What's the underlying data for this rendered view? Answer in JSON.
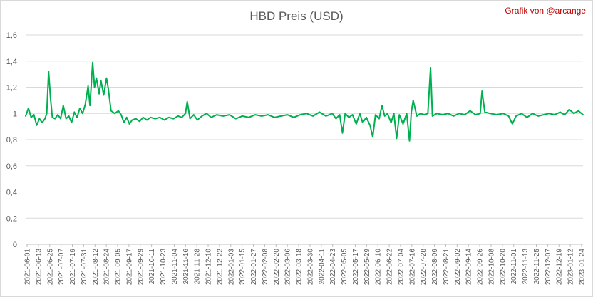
{
  "chart_data": {
    "type": "line",
    "title": "HBD Preis (USD)",
    "credit": "Grafik von @arcange",
    "xlabel": "",
    "ylabel": "",
    "ylim": [
      0,
      1.6
    ],
    "grid": true,
    "legend": "none",
    "y_ticks": [
      "0",
      "0,2",
      "0,4",
      "0,6",
      "0,8",
      "1",
      "1,2",
      "1,4",
      "1,6"
    ],
    "x_tick_labels": [
      "2021-06-01",
      "2021-06-13",
      "2021-06-25",
      "2021-07-07",
      "2021-07-19",
      "2021-07-31",
      "2021-08-12",
      "2021-08-24",
      "2021-09-05",
      "2021-09-17",
      "2021-09-29",
      "2021-10-11",
      "2021-10-23",
      "2021-11-04",
      "2021-11-16",
      "2021-11-28",
      "2021-12-10",
      "2021-12-22",
      "2022-01-03",
      "2022-01-15",
      "2022-01-27",
      "2022-02-08",
      "2022-02-20",
      "2022-03-06",
      "2022-03-18",
      "2022-03-30",
      "2022-04-11",
      "2022-04-23",
      "2022-05-05",
      "2022-05-17",
      "2022-05-29",
      "2022-06-10",
      "2022-06-22",
      "2022-07-04",
      "2022-07-16",
      "2022-07-28",
      "2022-08-09",
      "2022-08-21",
      "2022-09-02",
      "2022-09-14",
      "2022-09-26",
      "2022-10-08",
      "2022-10-20",
      "2022-11-01",
      "2022-11-13",
      "2022-11-25",
      "2022-12-07",
      "2022-12-19",
      "2023-01-12",
      "2023-01-24"
    ],
    "color": "#00b050",
    "series": [
      {
        "points": [
          [
            "2021-06-01",
            0.98
          ],
          [
            "2021-06-04",
            1.04
          ],
          [
            "2021-06-07",
            0.97
          ],
          [
            "2021-06-10",
            0.99
          ],
          [
            "2021-06-13",
            0.91
          ],
          [
            "2021-06-16",
            0.96
          ],
          [
            "2021-06-19",
            0.93
          ],
          [
            "2021-06-22",
            0.96
          ],
          [
            "2021-06-24",
            1.0
          ],
          [
            "2021-06-26",
            1.32
          ],
          [
            "2021-06-28",
            1.12
          ],
          [
            "2021-06-30",
            0.97
          ],
          [
            "2021-07-03",
            0.96
          ],
          [
            "2021-07-06",
            0.99
          ],
          [
            "2021-07-09",
            0.96
          ],
          [
            "2021-07-12",
            1.06
          ],
          [
            "2021-07-15",
            0.96
          ],
          [
            "2021-07-18",
            0.98
          ],
          [
            "2021-07-21",
            0.93
          ],
          [
            "2021-07-24",
            1.01
          ],
          [
            "2021-07-27",
            0.97
          ],
          [
            "2021-07-30",
            1.04
          ],
          [
            "2021-08-02",
            1.0
          ],
          [
            "2021-08-05",
            1.07
          ],
          [
            "2021-08-08",
            1.21
          ],
          [
            "2021-08-10",
            1.06
          ],
          [
            "2021-08-13",
            1.39
          ],
          [
            "2021-08-15",
            1.2
          ],
          [
            "2021-08-17",
            1.27
          ],
          [
            "2021-08-20",
            1.15
          ],
          [
            "2021-08-22",
            1.25
          ],
          [
            "2021-08-25",
            1.14
          ],
          [
            "2021-08-28",
            1.27
          ],
          [
            "2021-08-30",
            1.19
          ],
          [
            "2021-09-02",
            1.02
          ],
          [
            "2021-09-06",
            1.0
          ],
          [
            "2021-09-10",
            1.02
          ],
          [
            "2021-09-13",
            0.99
          ],
          [
            "2021-09-16",
            0.93
          ],
          [
            "2021-09-19",
            0.97
          ],
          [
            "2021-09-22",
            0.92
          ],
          [
            "2021-09-25",
            0.95
          ],
          [
            "2021-09-29",
            0.96
          ],
          [
            "2021-10-03",
            0.94
          ],
          [
            "2021-10-07",
            0.97
          ],
          [
            "2021-10-11",
            0.95
          ],
          [
            "2021-10-15",
            0.97
          ],
          [
            "2021-10-20",
            0.96
          ],
          [
            "2021-10-25",
            0.97
          ],
          [
            "2021-10-30",
            0.95
          ],
          [
            "2021-11-04",
            0.97
          ],
          [
            "2021-11-09",
            0.96
          ],
          [
            "2021-11-14",
            0.98
          ],
          [
            "2021-11-18",
            0.97
          ],
          [
            "2021-11-22",
            1.0
          ],
          [
            "2021-11-24",
            1.09
          ],
          [
            "2021-11-27",
            0.96
          ],
          [
            "2021-12-01",
            0.99
          ],
          [
            "2021-12-05",
            0.95
          ],
          [
            "2021-12-10",
            0.98
          ],
          [
            "2021-12-15",
            1.0
          ],
          [
            "2021-12-20",
            0.97
          ],
          [
            "2021-12-26",
            0.99
          ],
          [
            "2022-01-02",
            0.98
          ],
          [
            "2022-01-09",
            0.99
          ],
          [
            "2022-01-16",
            0.96
          ],
          [
            "2022-01-23",
            0.98
          ],
          [
            "2022-01-30",
            0.97
          ],
          [
            "2022-02-06",
            0.99
          ],
          [
            "2022-02-13",
            0.98
          ],
          [
            "2022-02-20",
            0.99
          ],
          [
            "2022-02-27",
            0.97
          ],
          [
            "2022-03-06",
            0.98
          ],
          [
            "2022-03-13",
            0.99
          ],
          [
            "2022-03-20",
            0.97
          ],
          [
            "2022-03-27",
            0.99
          ],
          [
            "2022-04-03",
            1.0
          ],
          [
            "2022-04-10",
            0.98
          ],
          [
            "2022-04-17",
            1.01
          ],
          [
            "2022-04-24",
            0.98
          ],
          [
            "2022-05-01",
            1.0
          ],
          [
            "2022-05-05",
            0.96
          ],
          [
            "2022-05-09",
            0.99
          ],
          [
            "2022-05-12",
            0.85
          ],
          [
            "2022-05-15",
            1.0
          ],
          [
            "2022-05-19",
            0.97
          ],
          [
            "2022-05-23",
            0.99
          ],
          [
            "2022-05-27",
            0.92
          ],
          [
            "2022-05-31",
            1.0
          ],
          [
            "2022-06-03",
            0.93
          ],
          [
            "2022-06-07",
            0.97
          ],
          [
            "2022-06-11",
            0.91
          ],
          [
            "2022-06-14",
            0.82
          ],
          [
            "2022-06-17",
            0.99
          ],
          [
            "2022-06-21",
            0.96
          ],
          [
            "2022-06-24",
            1.06
          ],
          [
            "2022-06-27",
            0.98
          ],
          [
            "2022-06-30",
            1.0
          ],
          [
            "2022-07-04",
            0.93
          ],
          [
            "2022-07-07",
            1.0
          ],
          [
            "2022-07-10",
            0.81
          ],
          [
            "2022-07-13",
            0.99
          ],
          [
            "2022-07-17",
            0.92
          ],
          [
            "2022-07-21",
            1.0
          ],
          [
            "2022-07-24",
            0.79
          ],
          [
            "2022-07-26",
            1.01
          ],
          [
            "2022-07-28",
            1.1
          ],
          [
            "2022-08-01",
            0.98
          ],
          [
            "2022-08-05",
            1.0
          ],
          [
            "2022-08-09",
            0.99
          ],
          [
            "2022-08-13",
            1.0
          ],
          [
            "2022-08-16",
            1.35
          ],
          [
            "2022-08-18",
            0.98
          ],
          [
            "2022-08-23",
            1.0
          ],
          [
            "2022-08-29",
            0.99
          ],
          [
            "2022-09-04",
            1.0
          ],
          [
            "2022-09-10",
            0.98
          ],
          [
            "2022-09-16",
            1.0
          ],
          [
            "2022-09-22",
            0.99
          ],
          [
            "2022-09-28",
            1.02
          ],
          [
            "2022-10-04",
            0.99
          ],
          [
            "2022-10-09",
            1.0
          ],
          [
            "2022-10-11",
            1.17
          ],
          [
            "2022-10-14",
            1.01
          ],
          [
            "2022-10-20",
            1.0
          ],
          [
            "2022-10-27",
            0.99
          ],
          [
            "2022-11-03",
            1.0
          ],
          [
            "2022-11-09",
            0.98
          ],
          [
            "2022-11-13",
            0.92
          ],
          [
            "2022-11-17",
            0.98
          ],
          [
            "2022-11-23",
            1.0
          ],
          [
            "2022-11-29",
            0.97
          ],
          [
            "2022-12-05",
            1.0
          ],
          [
            "2022-12-11",
            0.98
          ],
          [
            "2022-12-17",
            0.99
          ],
          [
            "2022-12-23",
            1.0
          ],
          [
            "2022-12-29",
            0.99
          ],
          [
            "2023-01-04",
            1.01
          ],
          [
            "2023-01-09",
            0.99
          ],
          [
            "2023-01-14",
            1.03
          ],
          [
            "2023-01-19",
            1.0
          ],
          [
            "2023-01-24",
            1.02
          ],
          [
            "2023-01-29",
            0.99
          ]
        ]
      }
    ]
  }
}
